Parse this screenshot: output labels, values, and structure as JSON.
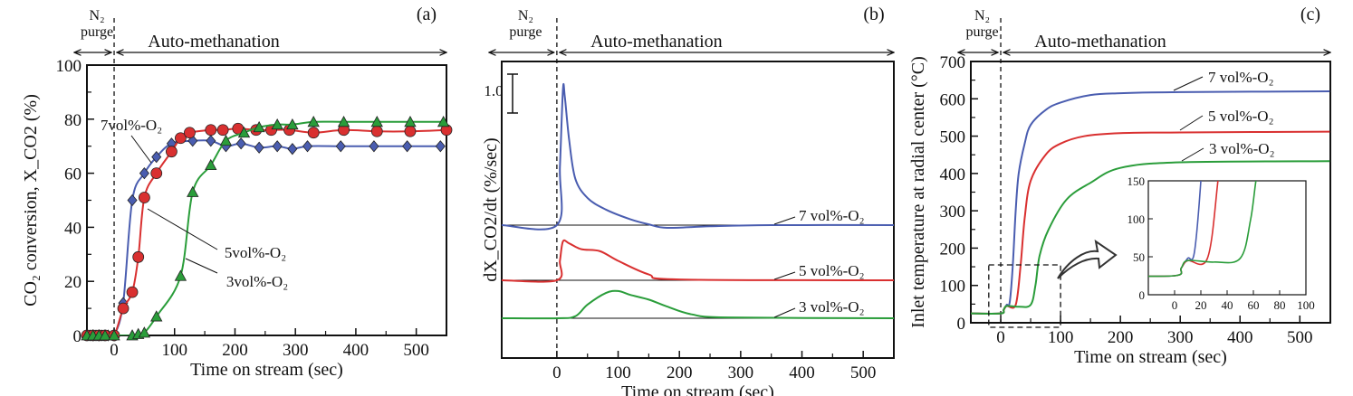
{
  "colors": {
    "7vol": "#4a5db0",
    "5vol": "#d93030",
    "3vol": "#2a9d3a",
    "axis": "#111111"
  },
  "chart_data": [
    {
      "type": "line",
      "panel_label": "(a)",
      "phase_labels": {
        "purge": "N₂ purge",
        "reaction": "Auto-methanation"
      },
      "xlabel": "Time on stream (sec)",
      "ylabel": "CO₂ conversion, X_CO2  (%)",
      "xlim": [
        -45,
        550
      ],
      "ylim": [
        0,
        100
      ],
      "xticks": [
        0,
        100,
        200,
        300,
        400,
        500
      ],
      "yticks": [
        0,
        20,
        40,
        60,
        80,
        100
      ],
      "series": [
        {
          "name": "7vol%-O₂",
          "color_key": "7vol",
          "marker": "diamond",
          "x": [
            -40,
            -30,
            -20,
            -10,
            0,
            15,
            30,
            50,
            70,
            95,
            130,
            160,
            185,
            210,
            240,
            270,
            295,
            320,
            375,
            430,
            485,
            540
          ],
          "y": [
            0,
            0,
            0,
            0,
            0,
            12,
            50,
            60,
            66,
            71,
            72,
            72,
            70,
            71,
            69.5,
            70,
            69,
            70,
            70,
            70,
            70,
            70
          ]
        },
        {
          "name": "5vol%-O₂",
          "color_key": "5vol",
          "marker": "circle",
          "x": [
            -45,
            -35,
            -25,
            -15,
            0,
            15,
            30,
            40,
            50,
            70,
            95,
            110,
            125,
            160,
            180,
            205,
            235,
            260,
            290,
            330,
            380,
            435,
            490,
            550
          ],
          "y": [
            0,
            0,
            0,
            0,
            0,
            10,
            16,
            29,
            51,
            60,
            68,
            73,
            75,
            76,
            76,
            76.5,
            76,
            76,
            76,
            75,
            76,
            75.5,
            75.5,
            76
          ]
        },
        {
          "name": "3vol%-O₂",
          "color_key": "3vol",
          "marker": "triangle",
          "x": [
            -45,
            -35,
            -25,
            -15,
            0,
            30,
            40,
            50,
            70,
            110,
            130,
            160,
            185,
            215,
            240,
            270,
            295,
            330,
            380,
            435,
            490,
            545
          ],
          "y": [
            0,
            0,
            0,
            0,
            0,
            0,
            0.5,
            1,
            7,
            22,
            53,
            63,
            72,
            75,
            77,
            78,
            78,
            79,
            79,
            79,
            79,
            79
          ]
        }
      ]
    },
    {
      "type": "line",
      "panel_label": "(b)",
      "phase_labels": {
        "purge": "N₂ purge",
        "reaction": "Auto-methanation"
      },
      "xlabel": "Time on stream (sec)",
      "ylabel": "dX_CO2/dt (%/sec)",
      "scale_bar_label": "1.0",
      "scale_bar_value": 1.0,
      "xlim": [
        -90,
        550
      ],
      "xticks": [
        0,
        100,
        200,
        300,
        400,
        500
      ],
      "series": [
        {
          "name": "7 vol%-O₂",
          "color_key": "7vol",
          "x": [
            -90,
            0,
            5,
            10,
            13,
            20,
            30,
            50,
            80,
            120,
            150,
            180,
            250,
            350,
            550
          ],
          "y": [
            0,
            0,
            1.5,
            3.5,
            3.3,
            2.2,
            1.2,
            0.7,
            0.4,
            0.15,
            0.02,
            -0.07,
            -0.03,
            0,
            0
          ]
        },
        {
          "name": "5 vol%-O₂",
          "color_key": "5vol",
          "x": [
            -90,
            0,
            5,
            10,
            20,
            40,
            70,
            100,
            150,
            200,
            550
          ],
          "y": [
            0,
            0,
            0.5,
            1.0,
            0.95,
            0.8,
            0.75,
            0.5,
            0.15,
            0.02,
            0
          ]
        },
        {
          "name": "3 vol%-O₂",
          "color_key": "3vol",
          "x": [
            -90,
            0,
            30,
            50,
            80,
            100,
            120,
            150,
            180,
            220,
            280,
            550
          ],
          "y": [
            0,
            0,
            0.05,
            0.35,
            0.65,
            0.7,
            0.6,
            0.48,
            0.3,
            0.1,
            0.02,
            0
          ]
        }
      ]
    },
    {
      "type": "line",
      "panel_label": "(c)",
      "phase_labels": {
        "purge": "N₂ purge",
        "reaction": "Auto-methanation"
      },
      "xlabel": "Time on stream (sec)",
      "ylabel": "Inlet temperature at radial center (°C)",
      "xlim": [
        -50,
        551
      ],
      "ylim": [
        0,
        700
      ],
      "xticks": [
        0,
        100,
        200,
        300,
        400,
        500
      ],
      "yticks": [
        0,
        100,
        200,
        300,
        400,
        500,
        600,
        700
      ],
      "inset": {
        "xlim": [
          -20,
          100
        ],
        "ylim": [
          0,
          150
        ],
        "xticks": [
          0,
          20,
          40,
          60,
          80,
          100
        ],
        "yticks": [
          0,
          50,
          100,
          150
        ]
      },
      "series": [
        {
          "name": "7 vol%-O₂",
          "color_key": "7vol",
          "x": [
            -50,
            0,
            5,
            10,
            15,
            20,
            25,
            30,
            40,
            50,
            75,
            100,
            150,
            200,
            300,
            550
          ],
          "y": [
            25,
            25,
            35,
            48,
            55,
            150,
            300,
            400,
            480,
            530,
            570,
            590,
            610,
            615,
            618,
            620
          ]
        },
        {
          "name": "5 vol%-O₂",
          "color_key": "5vol",
          "x": [
            -50,
            0,
            5,
            10,
            25,
            33,
            40,
            50,
            75,
            100,
            140,
            200,
            300,
            550
          ],
          "y": [
            25,
            25,
            35,
            45,
            48,
            150,
            280,
            380,
            450,
            480,
            500,
            508,
            510,
            512
          ]
        },
        {
          "name": "3 vol%-O₂",
          "color_key": "3vol",
          "x": [
            -50,
            0,
            5,
            10,
            30,
            50,
            58,
            65,
            80,
            110,
            150,
            200,
            300,
            550
          ],
          "y": [
            25,
            25,
            35,
            45,
            43,
            48,
            100,
            180,
            250,
            330,
            375,
            415,
            430,
            433
          ]
        }
      ]
    }
  ]
}
